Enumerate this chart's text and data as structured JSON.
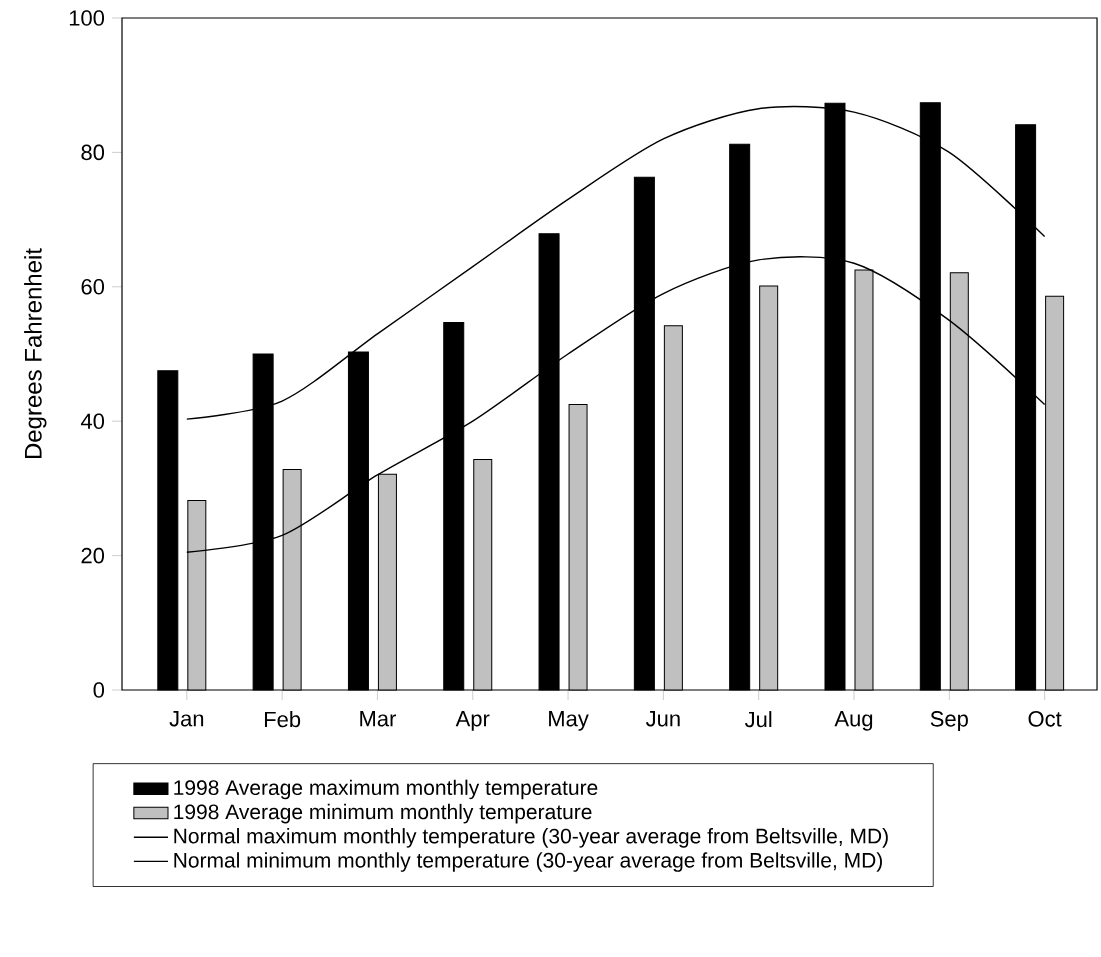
{
  "chart_data": {
    "type": "bar",
    "ylabel": "Degrees Fahrenheit",
    "categories": [
      "Jan",
      "Feb",
      "Mar",
      "Apr",
      "May",
      "Jun",
      "Jul",
      "Aug",
      "Sep",
      "Oct"
    ],
    "series": [
      {
        "name": "1998 Average maximum monthly temperature",
        "color": "#000000",
        "values": [
          47.5,
          50,
          50.3,
          54.7,
          67.9,
          76.3,
          81.2,
          87.3,
          87.4,
          84.1
        ]
      },
      {
        "name": "1998 Average minimum monthly temperature",
        "color": "#c0c0c0",
        "values": [
          28.2,
          32.8,
          32.1,
          34.3,
          42.5,
          54.2,
          60.1,
          62.5,
          62.1,
          58.6
        ]
      },
      {
        "name": "Normal maximum monthly temperature (30-year average from Beltsville, MD)",
        "type": "line",
        "color": "#000000",
        "values": [
          40.3,
          43,
          53,
          63,
          73,
          82,
          86.5,
          86,
          80,
          67.5
        ]
      },
      {
        "name": "Normal minimum monthly temperature (30-year average from Beltsville, MD)",
        "type": "line",
        "color": "#000000",
        "values": [
          20.5,
          23,
          32,
          40,
          50,
          59,
          64,
          63.5,
          55,
          42.5
        ]
      }
    ],
    "ylim": [
      0,
      100
    ],
    "yticks": [
      0,
      20,
      40,
      60,
      80,
      100
    ],
    "legend": "bottom",
    "grid": false
  }
}
